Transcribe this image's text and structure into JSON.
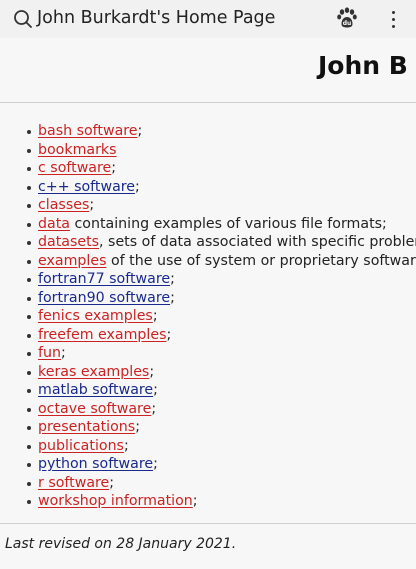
{
  "browser": {
    "tab_title": "John Burkardt's Home Page",
    "icons": [
      "search-icon",
      "paw-icon",
      "menu-icon"
    ]
  },
  "page": {
    "heading": "John B",
    "links": [
      {
        "label": "bash software",
        "suffix": ";",
        "color": "#cc2222"
      },
      {
        "label": "bookmarks",
        "suffix": "",
        "color": "#cc2222"
      },
      {
        "label": "c software",
        "suffix": ";",
        "color": "#cc2222"
      },
      {
        "label": "c++ software",
        "suffix": ";",
        "color": "#1a2a8c"
      },
      {
        "label": "classes",
        "suffix": ";",
        "color": "#cc2222"
      },
      {
        "label": "data",
        "suffix": " containing examples of various file formats;",
        "color": "#cc2222"
      },
      {
        "label": "datasets",
        "suffix": ", sets of data associated with specific probler",
        "color": "#cc2222"
      },
      {
        "label": "examples",
        "suffix": " of the use of system or proprietary software",
        "color": "#cc2222"
      },
      {
        "label": "fortran77 software",
        "suffix": ";",
        "color": "#1a2a8c"
      },
      {
        "label": "fortran90 software",
        "suffix": ";",
        "color": "#1a2a8c"
      },
      {
        "label": "fenics examples",
        "suffix": ";",
        "color": "#cc2222"
      },
      {
        "label": "freefem examples",
        "suffix": ";",
        "color": "#cc2222"
      },
      {
        "label": "fun",
        "suffix": ";",
        "color": "#cc2222"
      },
      {
        "label": "keras examples",
        "suffix": ";",
        "color": "#cc2222"
      },
      {
        "label": "matlab software",
        "suffix": ";",
        "color": "#1a2a8c"
      },
      {
        "label": "octave software",
        "suffix": ";",
        "color": "#cc2222"
      },
      {
        "label": "presentations",
        "suffix": ";",
        "color": "#cc2222"
      },
      {
        "label": "publications",
        "suffix": ";",
        "color": "#cc2222"
      },
      {
        "label": "python software",
        "suffix": ";",
        "color": "#1a2a8c"
      },
      {
        "label": "r software",
        "suffix": ";",
        "color": "#cc2222"
      },
      {
        "label": "workshop information",
        "suffix": ";",
        "color": "#cc2222"
      }
    ],
    "last_revised": "Last revised on 28 January 2021."
  }
}
